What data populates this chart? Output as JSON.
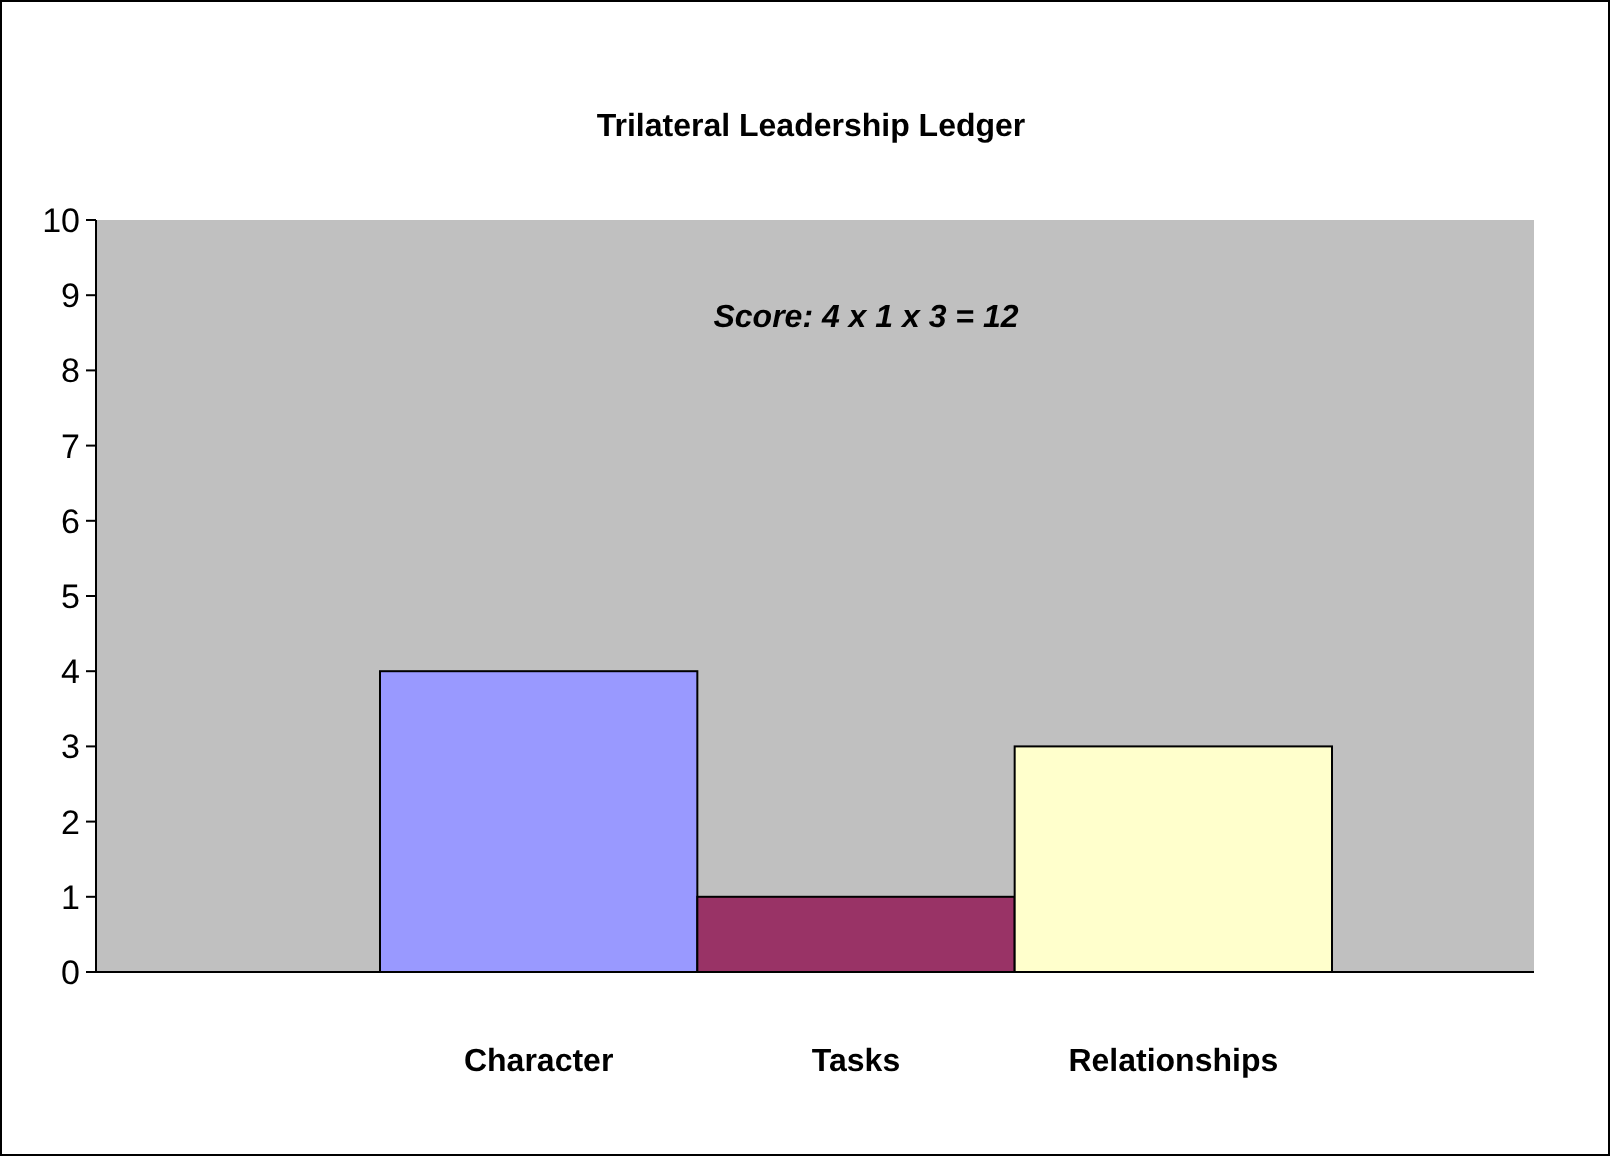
{
  "chart_data": {
    "type": "bar",
    "title": "Trilateral Leadership Ledger",
    "categories": [
      "Character",
      "Tasks",
      "Relationships"
    ],
    "values": [
      4,
      1,
      3
    ],
    "colors": [
      "#9999ff",
      "#993366",
      "#ffffcc"
    ],
    "ylim": [
      0,
      10
    ],
    "yticks": [
      0,
      1,
      2,
      3,
      4,
      5,
      6,
      7,
      8,
      9,
      10
    ],
    "grid": false,
    "annotations": [
      "Score: 4 x 1 x 3 = 12"
    ]
  }
}
